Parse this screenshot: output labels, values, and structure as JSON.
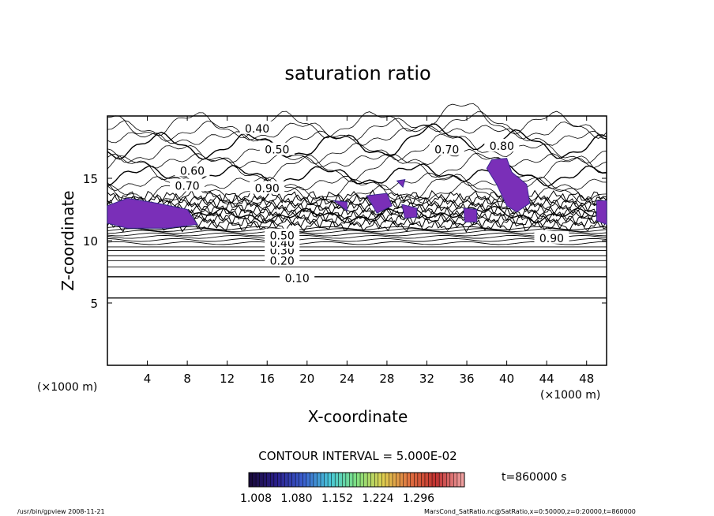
{
  "chart_data": {
    "type": "contour",
    "title": "saturation ratio",
    "xlabel": "X-coordinate",
    "ylabel": "Z-coordinate",
    "x_unit": "(×1000 m)",
    "y_unit": "(×1000 m)",
    "xlim": [
      0,
      50
    ],
    "ylim": [
      0,
      20
    ],
    "x_ticks": [
      4,
      8,
      12,
      16,
      20,
      24,
      28,
      32,
      36,
      40,
      44,
      48
    ],
    "y_ticks": [
      5,
      10,
      15
    ],
    "contour_interval_text": "CONTOUR INTERVAL = 5.000E-02",
    "time_label": "t=860000 s",
    "colorbar": {
      "tick_labels": [
        "1.008",
        "1.080",
        "1.152",
        "1.224",
        "1.296"
      ],
      "colors": [
        "#1a0a3c",
        "#2a1f8c",
        "#3a5fd0",
        "#48c8d8",
        "#7fe080",
        "#e0d050",
        "#e07040",
        "#c03030",
        "#f0a0a0"
      ]
    },
    "contour_labels": [
      {
        "text": "0.10",
        "x": 19.0,
        "z": 7.0
      },
      {
        "text": "0.20",
        "x": 17.5,
        "z": 8.4
      },
      {
        "text": "0.30",
        "x": 17.5,
        "z": 9.2
      },
      {
        "text": "0.40",
        "x": 17.5,
        "z": 9.8
      },
      {
        "text": "0.50",
        "x": 17.5,
        "z": 10.4
      },
      {
        "text": "0.40",
        "x": 15.0,
        "z": 19.0
      },
      {
        "text": "0.50",
        "x": 17.0,
        "z": 17.3
      },
      {
        "text": "0.70",
        "x": 34.0,
        "z": 17.3
      },
      {
        "text": "0.80",
        "x": 39.5,
        "z": 17.6
      },
      {
        "text": "0.60",
        "x": 8.5,
        "z": 15.6
      },
      {
        "text": "0.70",
        "x": 8.0,
        "z": 14.4
      },
      {
        "text": "0.90",
        "x": 16.0,
        "z": 14.2
      },
      {
        "text": "0.90",
        "x": 44.5,
        "z": 10.2
      }
    ],
    "supersaturated_regions_note": "shaded regions where ratio > 1"
  },
  "footer": {
    "left": "/usr/bin/gpview   2008-11-21",
    "right": "MarsCond_SatRatio.nc@SatRatio,x=0:50000,z=0:20000,t=860000"
  }
}
